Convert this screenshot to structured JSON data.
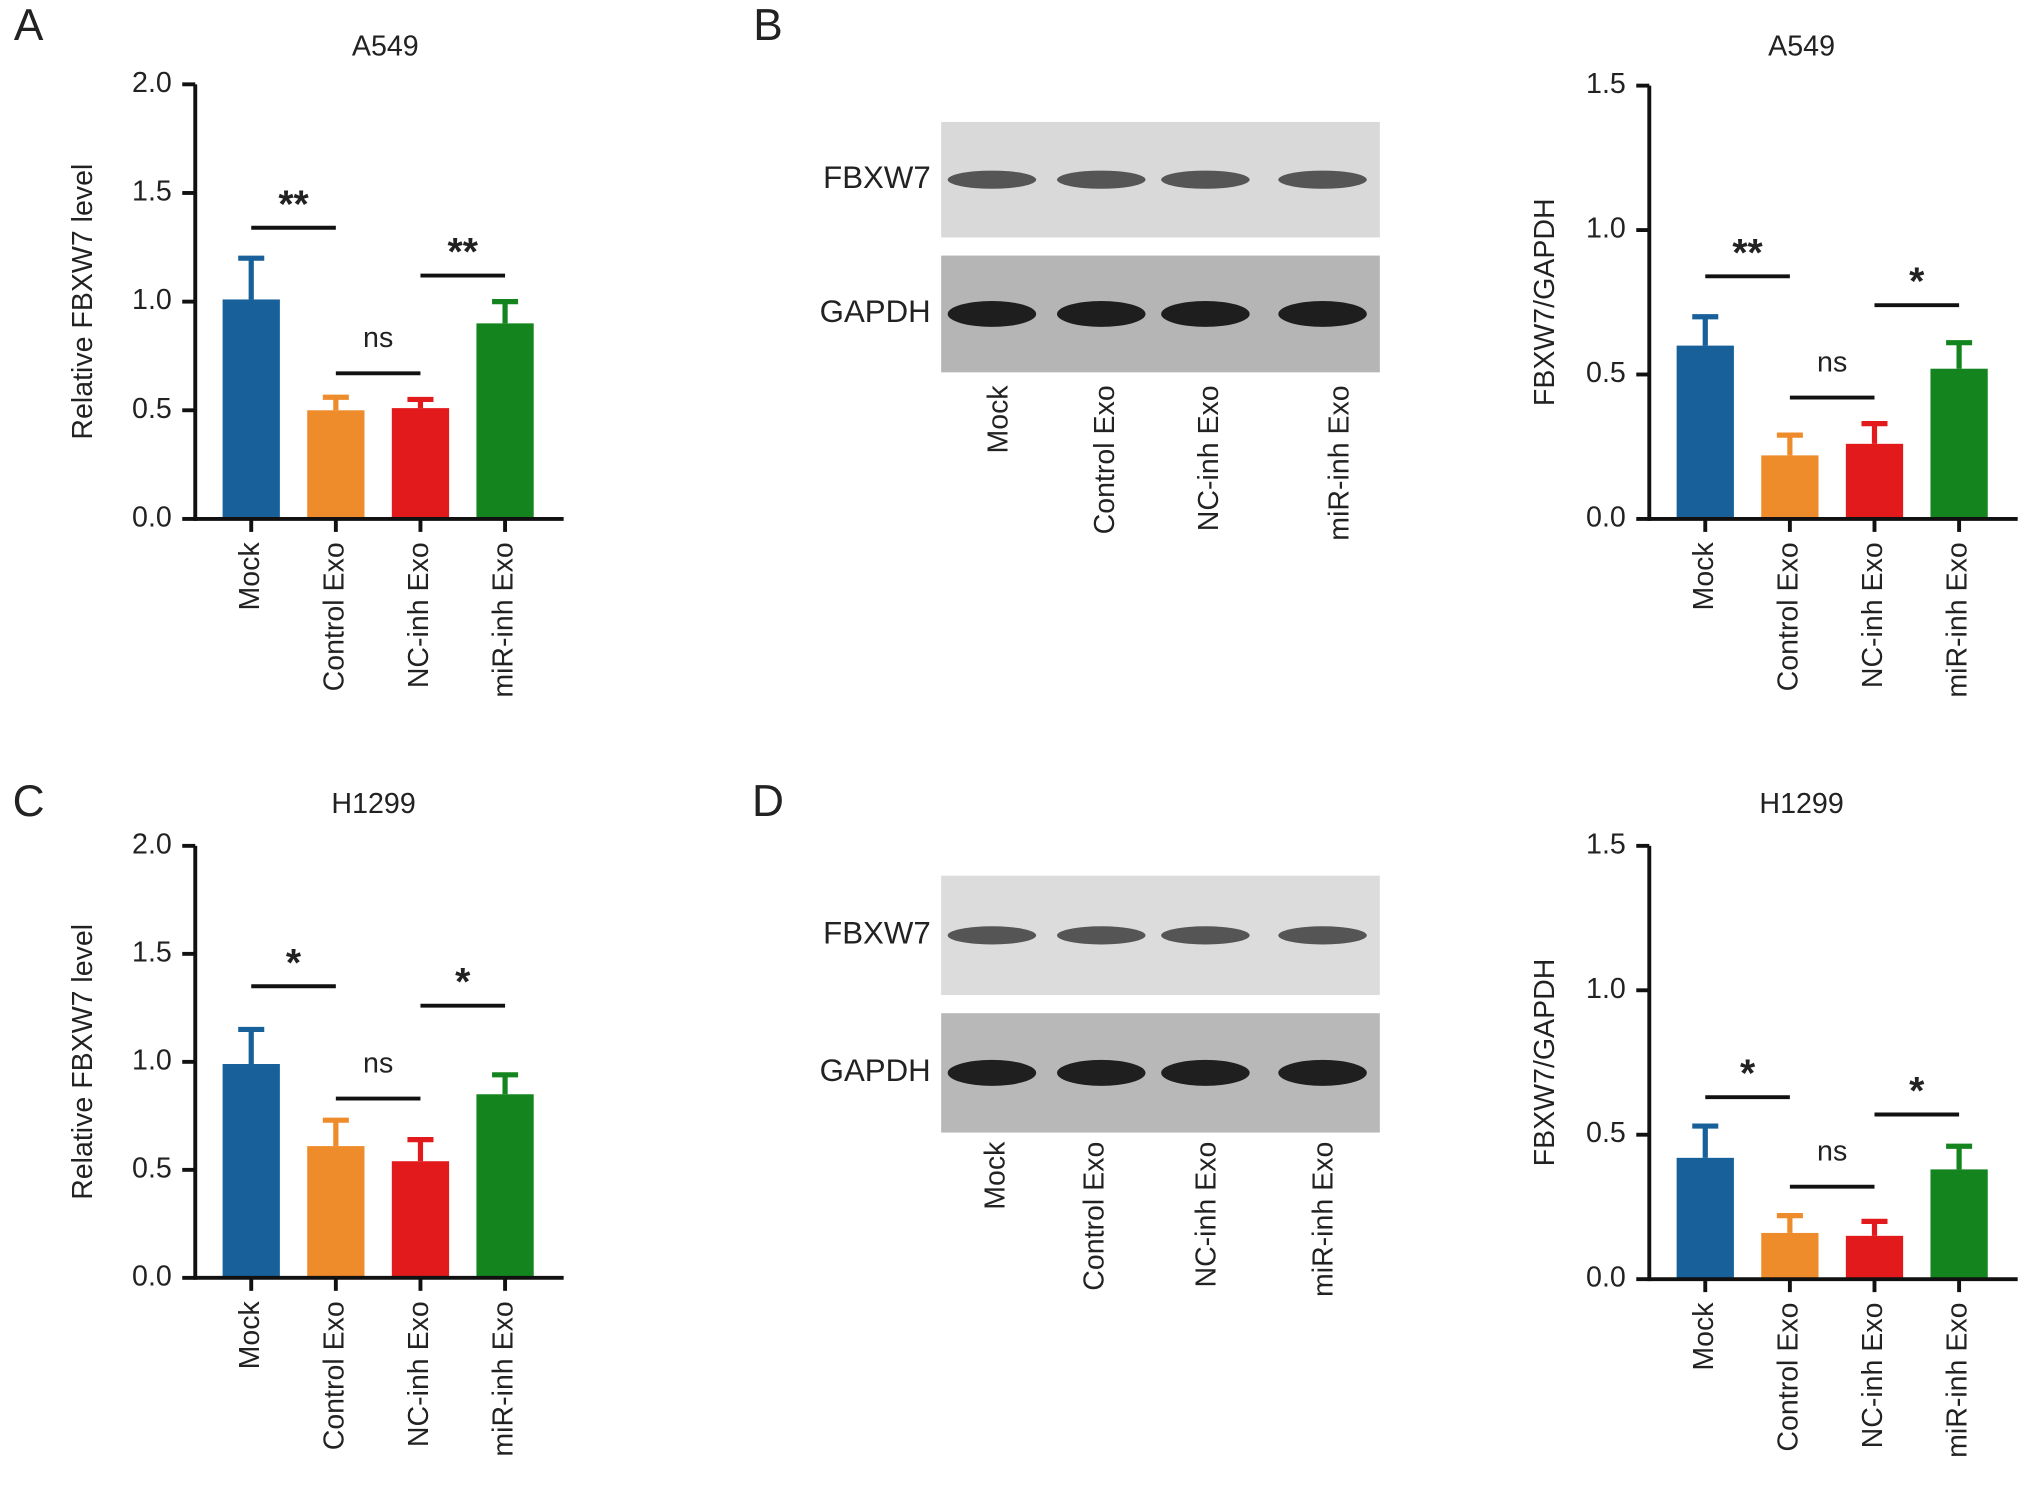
{
  "panel_labels": [
    "A",
    "B",
    "C",
    "D"
  ],
  "blots": [
    {
      "rows": [
        "FBXW7",
        "GAPDH"
      ],
      "lanes": [
        "Mock",
        "Control Exo",
        "NC-inh Exo",
        "miR-inh Exo"
      ]
    },
    {
      "rows": [
        "FBXW7",
        "GAPDH"
      ],
      "lanes": [
        "Mock",
        "Control Exo",
        "NC-inh Exo",
        "miR-inh Exo"
      ]
    }
  ],
  "chart_data": [
    {
      "type": "bar",
      "title": "A549",
      "ylabel": "Relative FBXW7 level",
      "categories": [
        "Mock",
        "Control Exo",
        "NC-inh Exo",
        "miR-inh Exo"
      ],
      "values": [
        1.01,
        0.5,
        0.51,
        0.9
      ],
      "errors": [
        0.19,
        0.06,
        0.04,
        0.1
      ],
      "colors": [
        "#17609a",
        "#ee8c2c",
        "#e31a1c",
        "#14841f"
      ],
      "ylim": [
        0,
        2
      ],
      "yticks": [
        {
          "value": 0,
          "label": "0.0"
        },
        {
          "value": 0.5,
          "label": "0.5"
        },
        {
          "value": 1,
          "label": "1.0"
        },
        {
          "value": 1.5,
          "label": "1.5"
        },
        {
          "value": 2,
          "label": "2.0"
        }
      ],
      "annotations": [
        {
          "between": [
            "Mock",
            "Control Exo"
          ],
          "y": 1.34,
          "label": "**"
        },
        {
          "between": [
            "Control Exo",
            "NC-inh Exo"
          ],
          "y": 0.67,
          "label": "ns"
        },
        {
          "between": [
            "NC-inh Exo",
            "miR-inh Exo"
          ],
          "y": 1.12,
          "label": "**"
        }
      ]
    },
    {
      "type": "bar",
      "title": "A549",
      "ylabel": "FBXW7/GAPDH",
      "categories": [
        "Mock",
        "Control Exo",
        "NC-inh Exo",
        "miR-inh Exo"
      ],
      "values": [
        0.6,
        0.22,
        0.26,
        0.52
      ],
      "errors": [
        0.1,
        0.07,
        0.07,
        0.09
      ],
      "colors": [
        "#17609a",
        "#ee8c2c",
        "#e31a1c",
        "#14841f"
      ],
      "ylim": [
        0,
        1.5
      ],
      "yticks": [
        {
          "value": 0,
          "label": "0.0"
        },
        {
          "value": 0.5,
          "label": "0.5"
        },
        {
          "value": 1,
          "label": "1.0"
        },
        {
          "value": 1.5,
          "label": "1.5"
        }
      ],
      "annotations": [
        {
          "between": [
            "Mock",
            "Control Exo"
          ],
          "y": 0.84,
          "label": "**"
        },
        {
          "between": [
            "Control Exo",
            "NC-inh Exo"
          ],
          "y": 0.42,
          "label": "ns"
        },
        {
          "between": [
            "NC-inh Exo",
            "miR-inh Exo"
          ],
          "y": 0.74,
          "label": "*"
        }
      ]
    },
    {
      "type": "bar",
      "title": "H1299",
      "ylabel": "Relative FBXW7 level",
      "categories": [
        "Mock",
        "Control Exo",
        "NC-inh Exo",
        "miR-inh Exo"
      ],
      "values": [
        0.99,
        0.61,
        0.54,
        0.85
      ],
      "errors": [
        0.16,
        0.12,
        0.1,
        0.09
      ],
      "colors": [
        "#17609a",
        "#ee8c2c",
        "#e31a1c",
        "#14841f"
      ],
      "ylim": [
        0,
        2
      ],
      "yticks": [
        {
          "value": 0,
          "label": "0.0"
        },
        {
          "value": 0.5,
          "label": "0.5"
        },
        {
          "value": 1,
          "label": "1.0"
        },
        {
          "value": 1.5,
          "label": "1.5"
        },
        {
          "value": 2,
          "label": "2.0"
        }
      ],
      "annotations": [
        {
          "between": [
            "Mock",
            "Control Exo"
          ],
          "y": 1.35,
          "label": "*"
        },
        {
          "between": [
            "Control Exo",
            "NC-inh Exo"
          ],
          "y": 0.83,
          "label": "ns"
        },
        {
          "between": [
            "NC-inh Exo",
            "miR-inh Exo"
          ],
          "y": 1.26,
          "label": "*"
        }
      ]
    },
    {
      "type": "bar",
      "title": "H1299",
      "ylabel": "FBXW7/GAPDH",
      "categories": [
        "Mock",
        "Control Exo",
        "NC-inh Exo",
        "miR-inh Exo"
      ],
      "values": [
        0.42,
        0.16,
        0.15,
        0.38
      ],
      "errors": [
        0.11,
        0.06,
        0.05,
        0.08
      ],
      "colors": [
        "#17609a",
        "#ee8c2c",
        "#e31a1c",
        "#14841f"
      ],
      "ylim": [
        0,
        1.5
      ],
      "yticks": [
        {
          "value": 0,
          "label": "0.0"
        },
        {
          "value": 0.5,
          "label": "0.5"
        },
        {
          "value": 1,
          "label": "1.0"
        },
        {
          "value": 1.5,
          "label": "1.5"
        }
      ],
      "annotations": [
        {
          "between": [
            "Mock",
            "Control Exo"
          ],
          "y": 0.63,
          "label": "*"
        },
        {
          "between": [
            "Control Exo",
            "NC-inh Exo"
          ],
          "y": 0.32,
          "label": "ns"
        },
        {
          "between": [
            "NC-inh Exo",
            "miR-inh Exo"
          ],
          "y": 0.57,
          "label": "*"
        }
      ]
    }
  ]
}
